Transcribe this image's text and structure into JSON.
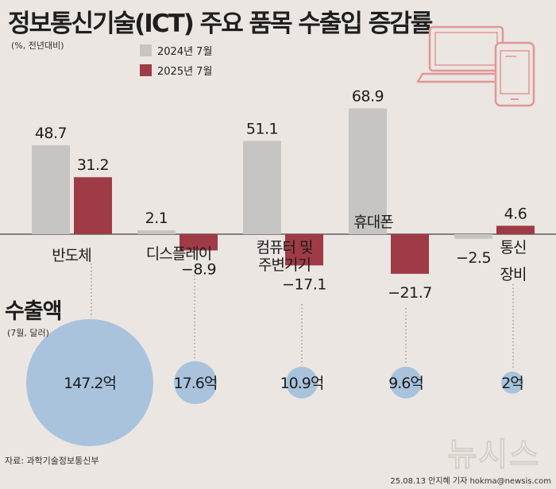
{
  "title": "정보통신기술(ICT) 주요 품목 수출입 증감률",
  "subtitle": "(%, 전년대비)",
  "colors": {
    "background": "#ebe6e1",
    "series_2024": "#c6c5c4",
    "series_2025": "#9e3b46",
    "bubble": "#a9c3dd",
    "icon": "#e29797"
  },
  "icon": "laptop-and-tablet-icon",
  "chart_data": {
    "type": "bar",
    "title": "정보통신기술(ICT) 주요 품목 수출입 증감률",
    "ylabel": "(%, 전년대비)",
    "categories": [
      "반도체",
      "디스플레이",
      "컴퓨터 및 주변기기",
      "휴대폰",
      "통신 장비"
    ],
    "category_lines": [
      [
        "반도체"
      ],
      [
        "디스플레이"
      ],
      [
        "컴퓨터 및",
        "주변기기"
      ],
      [
        "휴대폰"
      ],
      [
        "통신",
        "장비"
      ]
    ],
    "series": [
      {
        "name": "2024년 7월",
        "values": [
          48.7,
          2.1,
          51.1,
          68.9,
          -2.5
        ]
      },
      {
        "name": "2025년 7월",
        "values": [
          31.2,
          -8.9,
          -17.1,
          -21.7,
          4.6
        ]
      }
    ],
    "value_labels": [
      [
        "48.7",
        "2.1",
        "51.1",
        "68.9",
        "−2.5"
      ],
      [
        "31.2",
        "−8.9",
        "−17.1",
        "−21.7",
        "4.6"
      ]
    ],
    "ylim": [
      -25,
      75
    ],
    "legend": "top-left",
    "grid": false,
    "exports": {
      "title": "수출액",
      "unit": "(7월, 달러)",
      "values": [
        147.2,
        17.6,
        10.9,
        9.6,
        2
      ],
      "labels": [
        "147.2억",
        "17.6억",
        "10.9억",
        "9.6억",
        "2억"
      ]
    }
  },
  "source": "자료: 과학기술정보통신부",
  "credit": "25.08.13 안지혜 기자 hokma@newsis.com",
  "watermark": "뉴시스"
}
